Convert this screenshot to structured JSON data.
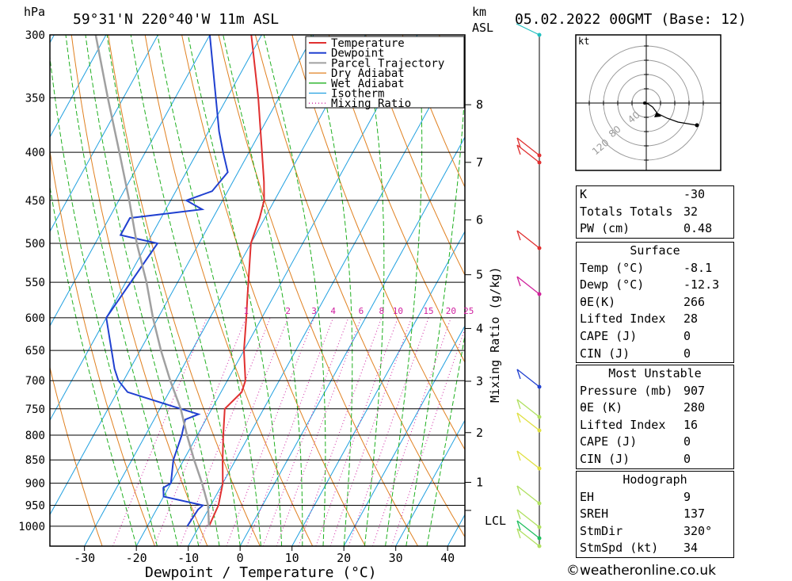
{
  "header": {
    "hpa_label": "hPa",
    "location": "59°31'N  220°40'W  11m  ASL",
    "km_label": "km",
    "asl_label": "ASL",
    "datetime": "05.02.2022  00GMT  (Base: 12)"
  },
  "chart_data": {
    "type": "line",
    "title": "59°31'N  220°40'W  11m  ASL",
    "xlabel": "Dewpoint / Temperature (°C)",
    "ylabel": "hPa",
    "xlim": [
      -40,
      40
    ],
    "ylim": [
      1050,
      300
    ],
    "x_ticks": [
      "-30",
      "-20",
      "-10",
      "0",
      "10",
      "20",
      "30",
      "40"
    ],
    "pressure_levels": [
      "300",
      "350",
      "400",
      "450",
      "500",
      "550",
      "600",
      "650",
      "700",
      "750",
      "800",
      "850",
      "900",
      "950",
      "1000"
    ],
    "km_ticks": [
      "8",
      "7",
      "6",
      "5",
      "4",
      "3",
      "2",
      "1"
    ],
    "lcl_label": "LCL",
    "mixing_ratio_axis_label": "Mixing Ratio (g/kg)",
    "mixing_ratio_labels": [
      "1",
      "2",
      "3",
      "4",
      "6",
      "8",
      "10",
      "15",
      "20",
      "25"
    ],
    "legend": [
      "Temperature",
      "Dewpoint",
      "Parcel Trajectory",
      "Dry Adiabat",
      "Wet Adiabat",
      "Isotherm",
      "Mixing Ratio"
    ],
    "legend_position": "top-right",
    "colors": {
      "temperature": "#e03030",
      "dewpoint": "#2040d0",
      "parcel": "#a0a0a0",
      "dry_adiabat": "#e08020",
      "wet_adiabat": "#20b020",
      "isotherm": "#20a0e0",
      "mixing_ratio": "#d020a0"
    },
    "series": [
      {
        "name": "Temperature",
        "points": [
          [
            1000,
            -8.1
          ],
          [
            950,
            -8.5
          ],
          [
            900,
            -10
          ],
          [
            850,
            -12.5
          ],
          [
            800,
            -15
          ],
          [
            750,
            -17.5
          ],
          [
            720,
            -16
          ],
          [
            700,
            -16.5
          ],
          [
            650,
            -20
          ],
          [
            600,
            -23
          ],
          [
            570,
            -25
          ],
          [
            500,
            -30
          ],
          [
            470,
            -31
          ],
          [
            450,
            -32
          ],
          [
            430,
            -34
          ],
          [
            400,
            -37.5
          ],
          [
            350,
            -44
          ],
          [
            300,
            -52
          ]
        ]
      },
      {
        "name": "Dewpoint",
        "points": [
          [
            1000,
            -12.3
          ],
          [
            960,
            -12
          ],
          [
            950,
            -11.5
          ],
          [
            930,
            -20
          ],
          [
            910,
            -21
          ],
          [
            900,
            -20
          ],
          [
            850,
            -22
          ],
          [
            800,
            -23
          ],
          [
            770,
            -24
          ],
          [
            760,
            -22
          ],
          [
            745,
            -28
          ],
          [
            720,
            -38
          ],
          [
            700,
            -41
          ],
          [
            680,
            -43
          ],
          [
            600,
            -50
          ],
          [
            500,
            -48
          ],
          [
            490,
            -56
          ],
          [
            470,
            -56
          ],
          [
            460,
            -43
          ],
          [
            450,
            -47
          ],
          [
            440,
            -43
          ],
          [
            420,
            -42
          ],
          [
            400,
            -45
          ],
          [
            380,
            -48
          ],
          [
            300,
            -60
          ]
        ]
      },
      {
        "name": "Parcel Trajectory",
        "points": [
          [
            1000,
            -8.1
          ],
          [
            950,
            -10.5
          ],
          [
            900,
            -14
          ],
          [
            850,
            -18
          ],
          [
            800,
            -22
          ],
          [
            750,
            -26
          ],
          [
            700,
            -31
          ],
          [
            650,
            -36
          ],
          [
            600,
            -41
          ],
          [
            550,
            -46
          ],
          [
            500,
            -52
          ],
          [
            450,
            -58
          ],
          [
            400,
            -65
          ],
          [
            350,
            -73
          ],
          [
            300,
            -82
          ]
        ]
      }
    ]
  },
  "hodograph": {
    "unit": "kt",
    "ring_labels": [
      "40",
      "80",
      "120"
    ]
  },
  "indices": {
    "rows": [
      {
        "label": "K",
        "value": "-30"
      },
      {
        "label": "Totals Totals",
        "value": "32"
      },
      {
        "label": "PW (cm)",
        "value": "0.48"
      }
    ]
  },
  "surface": {
    "title": "Surface",
    "rows": [
      {
        "label": "Temp (°C)",
        "value": "-8.1"
      },
      {
        "label": "Dewp (°C)",
        "value": "-12.3"
      },
      {
        "label": "θE(K)",
        "value": "266"
      },
      {
        "label": "Lifted Index",
        "value": "28"
      },
      {
        "label": "CAPE (J)",
        "value": "0"
      },
      {
        "label": "CIN (J)",
        "value": "0"
      }
    ]
  },
  "most_unstable": {
    "title": "Most Unstable",
    "rows": [
      {
        "label": "Pressure (mb)",
        "value": "907"
      },
      {
        "label": "θE (K)",
        "value": "280"
      },
      {
        "label": "Lifted Index",
        "value": "16"
      },
      {
        "label": "CAPE (J)",
        "value": "0"
      },
      {
        "label": "CIN (J)",
        "value": "0"
      }
    ]
  },
  "hodograph_table": {
    "title": "Hodograph",
    "rows": [
      {
        "label": "EH",
        "value": "9"
      },
      {
        "label": "SREH",
        "value": "137"
      },
      {
        "label": "StmDir",
        "value": "320°"
      },
      {
        "label": "StmSpd (kt)",
        "value": "34"
      }
    ]
  },
  "footer": {
    "copyright_icon": "copyright-icon",
    "site": "weatheronline.co.uk"
  }
}
